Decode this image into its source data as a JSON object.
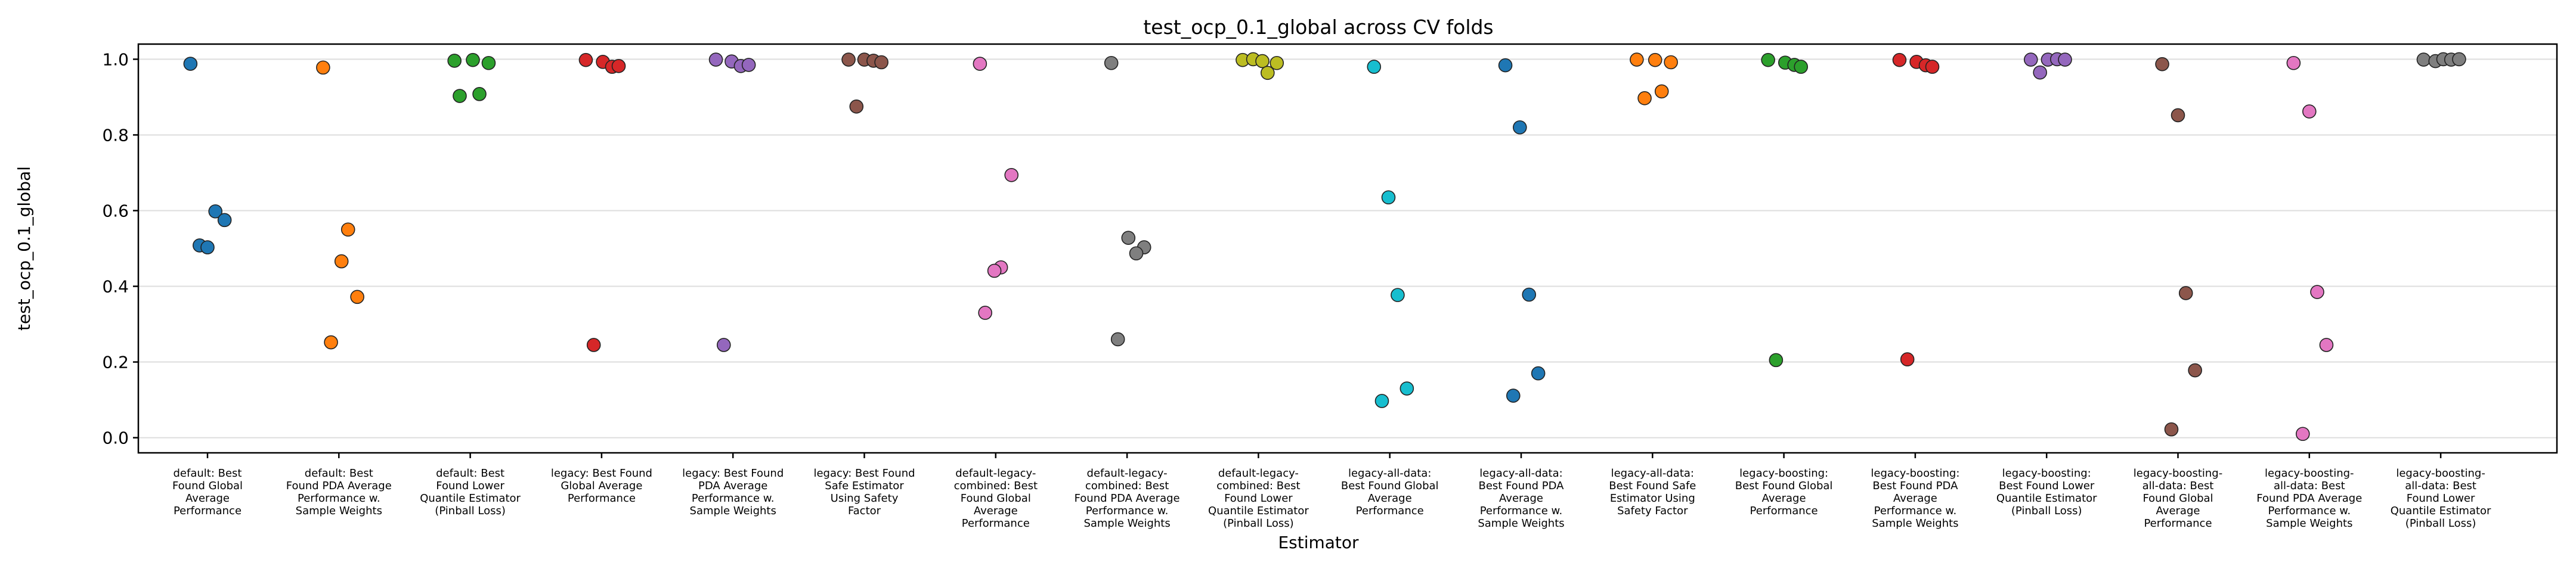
{
  "chart_data": {
    "type": "scatter",
    "title": "test_ocp_0.1_global across CV folds",
    "xlabel": "Estimator",
    "ylabel": "test_ocp_0.1_global",
    "ylim": [
      -0.04,
      1.04
    ],
    "yticks": [
      "0.0",
      "0.2",
      "0.4",
      "0.6",
      "0.8",
      "1.0"
    ],
    "grid": "horizontal",
    "categories": [
      {
        "label": [
          "default: Best",
          "Found Global",
          "Average",
          "Performance"
        ],
        "color": "#1f77b4",
        "points": [
          {
            "jitter": -0.13,
            "y": 0.988
          },
          {
            "jitter": 0.06,
            "y": 0.598
          },
          {
            "jitter": 0.13,
            "y": 0.575
          },
          {
            "jitter": -0.06,
            "y": 0.508
          },
          {
            "jitter": 0.0,
            "y": 0.503
          }
        ]
      },
      {
        "label": [
          "default: Best",
          "Found PDA Average",
          "Performance w.",
          "Sample Weights"
        ],
        "color": "#ff7f0e",
        "points": [
          {
            "jitter": -0.12,
            "y": 0.978
          },
          {
            "jitter": 0.07,
            "y": 0.55
          },
          {
            "jitter": 0.02,
            "y": 0.466
          },
          {
            "jitter": 0.14,
            "y": 0.372
          },
          {
            "jitter": -0.06,
            "y": 0.252
          }
        ]
      },
      {
        "label": [
          "default: Best",
          "Found Lower",
          "Quantile Estimator",
          "(Pinball Loss)"
        ],
        "color": "#2ca02c",
        "points": [
          {
            "jitter": -0.12,
            "y": 0.996
          },
          {
            "jitter": 0.02,
            "y": 0.998
          },
          {
            "jitter": 0.14,
            "y": 0.99
          },
          {
            "jitter": -0.08,
            "y": 0.903
          },
          {
            "jitter": 0.07,
            "y": 0.908
          }
        ]
      },
      {
        "label": [
          "legacy: Best Found",
          "Global Average",
          "Performance"
        ],
        "color": "#d62728",
        "points": [
          {
            "jitter": -0.12,
            "y": 0.998
          },
          {
            "jitter": 0.01,
            "y": 0.993
          },
          {
            "jitter": 0.08,
            "y": 0.98
          },
          {
            "jitter": 0.13,
            "y": 0.982
          },
          {
            "jitter": -0.06,
            "y": 0.245
          }
        ]
      },
      {
        "label": [
          "legacy: Best Found",
          "PDA Average",
          "Performance w.",
          "Sample Weights"
        ],
        "color": "#9467bd",
        "points": [
          {
            "jitter": -0.13,
            "y": 0.999
          },
          {
            "jitter": -0.01,
            "y": 0.994
          },
          {
            "jitter": 0.06,
            "y": 0.982
          },
          {
            "jitter": 0.12,
            "y": 0.985
          },
          {
            "jitter": -0.07,
            "y": 0.245
          }
        ]
      },
      {
        "label": [
          "legacy: Best Found",
          "Safe Estimator",
          "Using Safety",
          "Factor"
        ],
        "color": "#8c564b",
        "points": [
          {
            "jitter": -0.12,
            "y": 0.999
          },
          {
            "jitter": 0.0,
            "y": 0.999
          },
          {
            "jitter": 0.07,
            "y": 0.996
          },
          {
            "jitter": 0.13,
            "y": 0.992
          },
          {
            "jitter": -0.06,
            "y": 0.875
          }
        ]
      },
      {
        "label": [
          "default-legacy-",
          "combined: Best",
          "Found Global",
          "Average",
          "Performance"
        ],
        "color": "#e377c2",
        "points": [
          {
            "jitter": -0.12,
            "y": 0.988
          },
          {
            "jitter": 0.12,
            "y": 0.694
          },
          {
            "jitter": 0.04,
            "y": 0.45
          },
          {
            "jitter": -0.01,
            "y": 0.441
          },
          {
            "jitter": -0.08,
            "y": 0.33
          }
        ]
      },
      {
        "label": [
          "default-legacy-",
          "combined: Best",
          "Found PDA Average",
          "Performance w.",
          "Sample Weights"
        ],
        "color": "#7f7f7f",
        "points": [
          {
            "jitter": -0.12,
            "y": 0.99
          },
          {
            "jitter": 0.01,
            "y": 0.528
          },
          {
            "jitter": 0.13,
            "y": 0.503
          },
          {
            "jitter": 0.07,
            "y": 0.487
          },
          {
            "jitter": -0.07,
            "y": 0.26
          }
        ]
      },
      {
        "label": [
          "default-legacy-",
          "combined: Best",
          "Found Lower",
          "Quantile Estimator",
          "(Pinball Loss)"
        ],
        "color": "#bcbd22",
        "points": [
          {
            "jitter": -0.12,
            "y": 0.998
          },
          {
            "jitter": -0.04,
            "y": 1.0
          },
          {
            "jitter": 0.03,
            "y": 0.995
          },
          {
            "jitter": 0.14,
            "y": 0.99
          },
          {
            "jitter": 0.07,
            "y": 0.964
          }
        ]
      },
      {
        "label": [
          "legacy-all-data:",
          "Best Found Global",
          "Average",
          "Performance"
        ],
        "color": "#17becf",
        "points": [
          {
            "jitter": -0.12,
            "y": 0.98
          },
          {
            "jitter": -0.01,
            "y": 0.635
          },
          {
            "jitter": 0.06,
            "y": 0.377
          },
          {
            "jitter": 0.13,
            "y": 0.13
          },
          {
            "jitter": -0.06,
            "y": 0.097
          }
        ]
      },
      {
        "label": [
          "legacy-all-data:",
          "Best Found PDA",
          "Average",
          "Performance w.",
          "Sample Weights"
        ],
        "color": "#1f77b4",
        "points": [
          {
            "jitter": -0.12,
            "y": 0.984
          },
          {
            "jitter": -0.01,
            "y": 0.82
          },
          {
            "jitter": 0.06,
            "y": 0.378
          },
          {
            "jitter": 0.13,
            "y": 0.17
          },
          {
            "jitter": -0.06,
            "y": 0.111
          }
        ]
      },
      {
        "label": [
          "legacy-all-data:",
          "Best Found Safe",
          "Estimator Using",
          "Safety Factor"
        ],
        "color": "#ff7f0e",
        "points": [
          {
            "jitter": -0.12,
            "y": 0.999
          },
          {
            "jitter": 0.02,
            "y": 0.998
          },
          {
            "jitter": 0.14,
            "y": 0.992
          },
          {
            "jitter": 0.07,
            "y": 0.915
          },
          {
            "jitter": -0.06,
            "y": 0.897
          }
        ]
      },
      {
        "label": [
          "legacy-boosting:",
          "Best Found Global",
          "Average",
          "Performance"
        ],
        "color": "#2ca02c",
        "points": [
          {
            "jitter": -0.12,
            "y": 0.998
          },
          {
            "jitter": 0.01,
            "y": 0.991
          },
          {
            "jitter": 0.08,
            "y": 0.985
          },
          {
            "jitter": 0.13,
            "y": 0.98
          },
          {
            "jitter": -0.06,
            "y": 0.205
          }
        ]
      },
      {
        "label": [
          "legacy-boosting:",
          "Best Found PDA",
          "Average",
          "Performance w.",
          "Sample Weights"
        ],
        "color": "#d62728",
        "points": [
          {
            "jitter": -0.12,
            "y": 0.998
          },
          {
            "jitter": 0.01,
            "y": 0.993
          },
          {
            "jitter": 0.08,
            "y": 0.984
          },
          {
            "jitter": 0.13,
            "y": 0.98
          },
          {
            "jitter": -0.06,
            "y": 0.207
          }
        ]
      },
      {
        "label": [
          "legacy-boosting:",
          "Best Found Lower",
          "Quantile Estimator",
          "(Pinball Loss)"
        ],
        "color": "#9467bd",
        "points": [
          {
            "jitter": -0.12,
            "y": 0.999
          },
          {
            "jitter": 0.01,
            "y": 0.999
          },
          {
            "jitter": 0.08,
            "y": 1.0
          },
          {
            "jitter": 0.14,
            "y": 0.999
          },
          {
            "jitter": -0.05,
            "y": 0.965
          }
        ]
      },
      {
        "label": [
          "legacy-boosting-",
          "all-data: Best",
          "Found Global",
          "Average",
          "Performance"
        ],
        "color": "#8c564b",
        "points": [
          {
            "jitter": -0.12,
            "y": 0.987
          },
          {
            "jitter": 0.0,
            "y": 0.852
          },
          {
            "jitter": 0.06,
            "y": 0.382
          },
          {
            "jitter": 0.13,
            "y": 0.178
          },
          {
            "jitter": -0.05,
            "y": 0.022
          }
        ]
      },
      {
        "label": [
          "legacy-boosting-",
          "all-data: Best",
          "Found PDA Average",
          "Performance w.",
          "Sample Weights"
        ],
        "color": "#e377c2",
        "points": [
          {
            "jitter": -0.12,
            "y": 0.99
          },
          {
            "jitter": 0.0,
            "y": 0.862
          },
          {
            "jitter": 0.06,
            "y": 0.385
          },
          {
            "jitter": 0.13,
            "y": 0.245
          },
          {
            "jitter": -0.05,
            "y": 0.01
          }
        ]
      },
      {
        "label": [
          "legacy-boosting-",
          "all-data: Best",
          "Found Lower",
          "Quantile Estimator",
          "(Pinball Loss)"
        ],
        "color": "#7f7f7f",
        "points": [
          {
            "jitter": -0.13,
            "y": 0.999
          },
          {
            "jitter": -0.04,
            "y": 0.995
          },
          {
            "jitter": 0.02,
            "y": 1.0
          },
          {
            "jitter": 0.08,
            "y": 0.999
          },
          {
            "jitter": 0.14,
            "y": 1.0
          }
        ]
      }
    ]
  }
}
